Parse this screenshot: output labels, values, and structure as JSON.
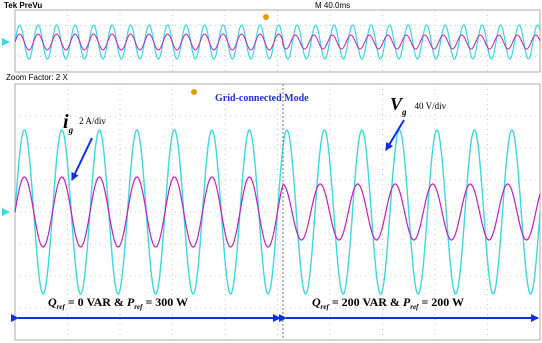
{
  "header": {
    "title": "Tek PreVu",
    "timebase": "M 40.0ms"
  },
  "zoom": "Zoom Factor: 2 X",
  "mode": "Grid-connected Mode",
  "current": {
    "symbol": "i",
    "sub": "g",
    "scale": "2 A/div"
  },
  "voltage": {
    "symbol": "V",
    "sub": "g",
    "scale": "40 V/div"
  },
  "segments": [
    {
      "q": "Q",
      "q_sub": "ref",
      "q_text": " = 0 VAR & ",
      "p": "P",
      "p_sub": "ref",
      "p_text": " = 300 W"
    },
    {
      "q": "Q",
      "q_sub": "ref",
      "q_text": " = 200 VAR & ",
      "p": "P",
      "p_sub": "ref",
      "p_text": " = 200 W"
    }
  ]
}
